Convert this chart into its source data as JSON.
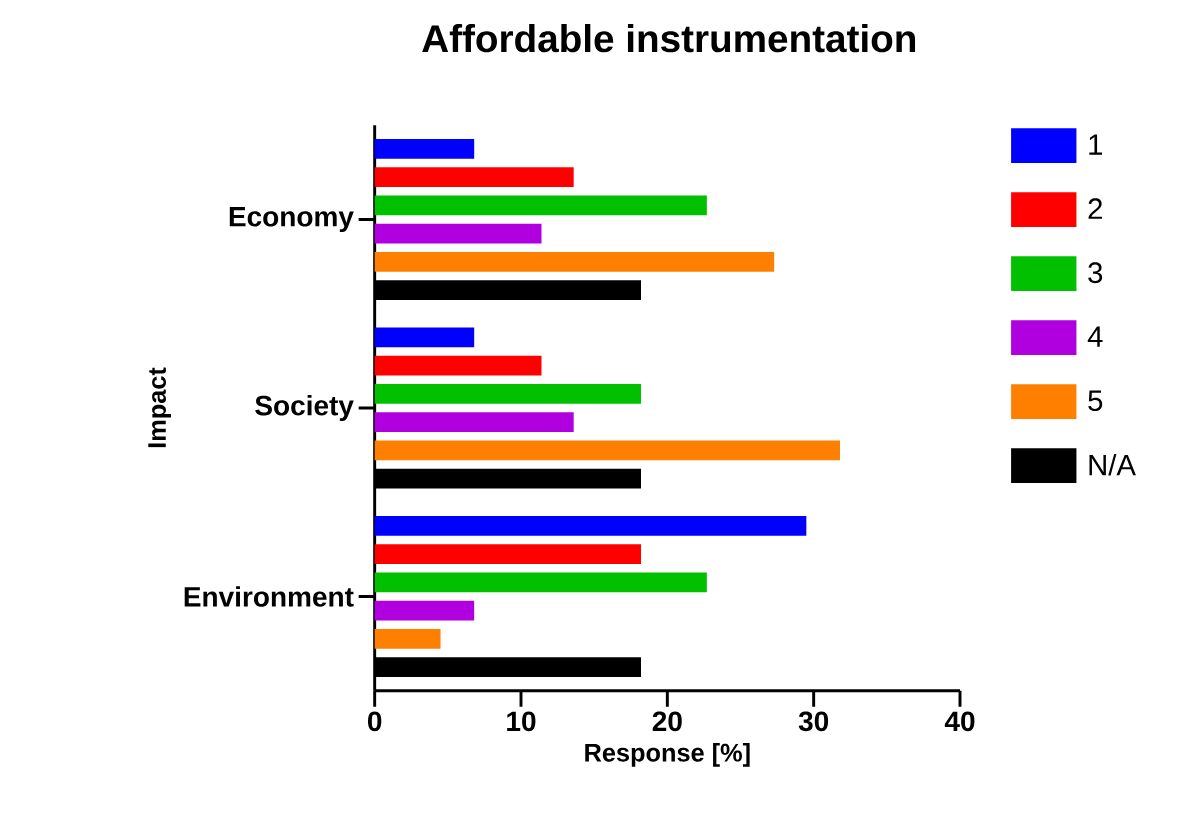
{
  "chart_data": {
    "type": "bar",
    "orientation": "horizontal",
    "title": "Affordable instrumentation",
    "xlabel": "Response [%]",
    "ylabel": "Impact",
    "categories": [
      "Economy",
      "Society",
      "Environment"
    ],
    "series": [
      {
        "name": "1",
        "color": "#0000ff",
        "values": [
          6.8,
          6.8,
          29.5
        ]
      },
      {
        "name": "2",
        "color": "#ff0000",
        "values": [
          13.6,
          11.4,
          18.2
        ]
      },
      {
        "name": "3",
        "color": "#00c000",
        "values": [
          22.7,
          18.2,
          22.7
        ]
      },
      {
        "name": "4",
        "color": "#b000e0",
        "values": [
          11.4,
          13.6,
          6.8
        ]
      },
      {
        "name": "5",
        "color": "#ff8000",
        "values": [
          27.3,
          31.8,
          4.5
        ]
      },
      {
        "name": "N/A",
        "color": "#000000",
        "values": [
          18.2,
          18.2,
          18.2
        ]
      }
    ],
    "xlim": [
      0,
      40
    ],
    "xticks": [
      0,
      10,
      20,
      30,
      40
    ],
    "legend": "right"
  }
}
